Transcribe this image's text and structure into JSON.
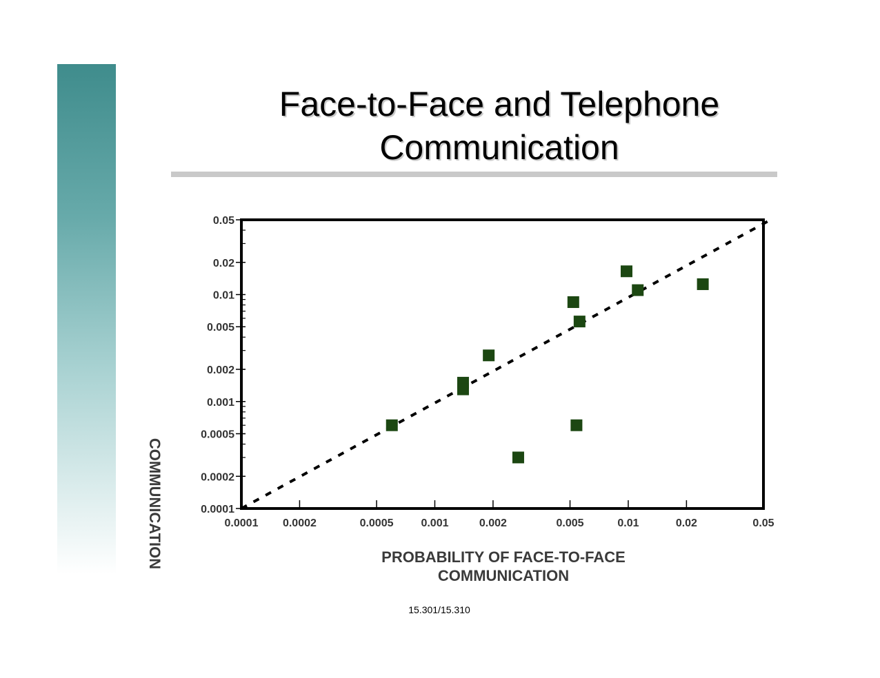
{
  "slide": {
    "title": "Face-to-Face and Telephone\nCommunication",
    "footer": "15.301/15.310",
    "accent_gradient": [
      "#3f8c8c",
      "#ffffff"
    ],
    "rule_color": "#c9c9c9"
  },
  "chart_data": {
    "type": "scatter",
    "title": "",
    "xlabel": "PROBABILITY OF FACE-TO-FACE\nCOMMUNICATION",
    "ylabel": "COMMUNICATION",
    "x_scale": "log",
    "y_scale": "log",
    "xlim": [
      0.0001,
      0.05
    ],
    "ylim": [
      0.0001,
      0.05
    ],
    "x_ticks": [
      {
        "value": 0.0001,
        "label": "0.0001"
      },
      {
        "value": 0.0002,
        "label": "0.0002"
      },
      {
        "value": 0.0005,
        "label": "0.0005"
      },
      {
        "value": 0.001,
        "label": "0.001"
      },
      {
        "value": 0.002,
        "label": "0.002"
      },
      {
        "value": 0.005,
        "label": "0.005"
      },
      {
        "value": 0.01,
        "label": "0.01"
      },
      {
        "value": 0.02,
        "label": "0.02"
      },
      {
        "value": 0.05,
        "label": "0.05"
      }
    ],
    "y_ticks": [
      {
        "value": 0.0001,
        "label": "0.0001"
      },
      {
        "value": 0.0002,
        "label": "0.0002"
      },
      {
        "value": 0.0005,
        "label": "0.0005"
      },
      {
        "value": 0.001,
        "label": "0.001"
      },
      {
        "value": 0.002,
        "label": "0.002"
      },
      {
        "value": 0.005,
        "label": "0.005"
      },
      {
        "value": 0.01,
        "label": "0.01"
      },
      {
        "value": 0.02,
        "label": "0.02"
      },
      {
        "value": 0.05,
        "label": "0.05"
      }
    ],
    "points": [
      {
        "x": 0.0006,
        "y": 0.0006
      },
      {
        "x": 0.0014,
        "y": 0.0015
      },
      {
        "x": 0.0014,
        "y": 0.0013
      },
      {
        "x": 0.0019,
        "y": 0.0027
      },
      {
        "x": 0.0027,
        "y": 0.0003
      },
      {
        "x": 0.0052,
        "y": 0.0085
      },
      {
        "x": 0.0056,
        "y": 0.0056
      },
      {
        "x": 0.0054,
        "y": 0.0006
      },
      {
        "x": 0.0098,
        "y": 0.0165
      },
      {
        "x": 0.0112,
        "y": 0.011
      },
      {
        "x": 0.0243,
        "y": 0.0125
      }
    ],
    "reference_line": {
      "style": "dotted",
      "from": [
        0.0001,
        0.0001
      ],
      "to": [
        0.05,
        0.05
      ]
    },
    "marker": {
      "shape": "square",
      "color": "#1c4712"
    },
    "grid": false,
    "legend": "none"
  }
}
